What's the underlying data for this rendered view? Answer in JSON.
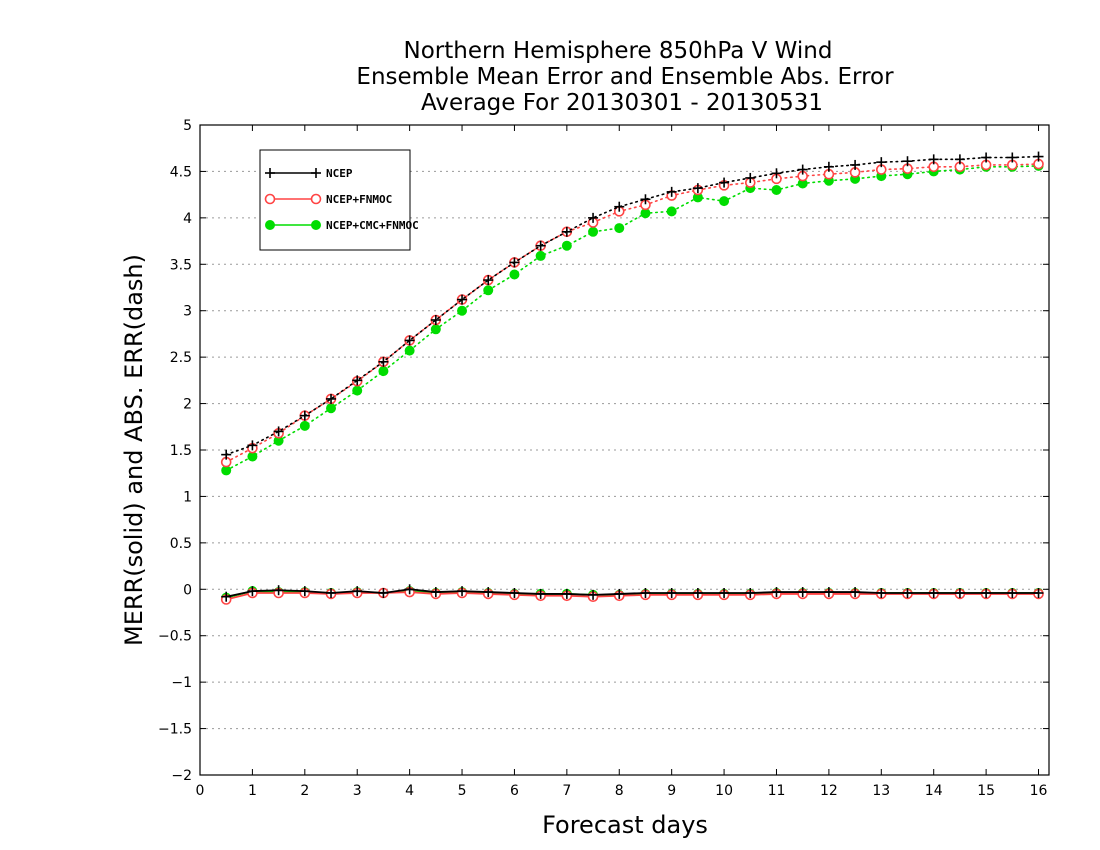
{
  "chart_data": {
    "type": "line",
    "title": [
      "Northern Hemisphere 850hPa V Wind",
      "Ensemble Mean Error and Ensemble Abs. Error",
      "Average For 20130301 - 20130531"
    ],
    "xlabel": "Forecast days",
    "ylabel": "MERR(solid) and ABS. ERR(dash)",
    "xlim": [
      0,
      16.2
    ],
    "ylim": [
      -2,
      5
    ],
    "xticks": [
      0,
      1,
      2,
      3,
      4,
      5,
      6,
      7,
      8,
      9,
      10,
      11,
      12,
      13,
      14,
      15,
      16
    ],
    "xtick_labels": [
      "0",
      "1",
      "2",
      "3",
      "4",
      "5",
      "6",
      "7",
      "8",
      "9",
      "10",
      "11",
      "12",
      "13",
      "14",
      "15",
      "16"
    ],
    "yticks": [
      -2,
      -1.5,
      -1,
      -0.5,
      0,
      0.5,
      1,
      1.5,
      2,
      2.5,
      3,
      3.5,
      4,
      4.5,
      5
    ],
    "ytick_labels": [
      "−2",
      "−1.5",
      "−1",
      "−0.5",
      "0",
      "0.5",
      "1",
      "1.5",
      "2",
      "2.5",
      "3",
      "3.5",
      "4",
      "4.5",
      "5"
    ],
    "grid": "horizontal-dotted",
    "legend_position": "top-left",
    "x": [
      0.5,
      1,
      1.5,
      2,
      2.5,
      3,
      3.5,
      4,
      4.5,
      5,
      5.5,
      6,
      6.5,
      7,
      7.5,
      8,
      8.5,
      9,
      9.5,
      10,
      10.5,
      11,
      11.5,
      12,
      12.5,
      13,
      13.5,
      14,
      14.5,
      15,
      15.5,
      16
    ],
    "series": [
      {
        "name": "NCEP",
        "color": "#000000",
        "marker": "plus",
        "abs_error": [
          1.45,
          1.55,
          1.7,
          1.87,
          2.05,
          2.25,
          2.45,
          2.68,
          2.9,
          3.12,
          3.33,
          3.52,
          3.7,
          3.85,
          4.0,
          4.12,
          4.2,
          4.28,
          4.32,
          4.38,
          4.43,
          4.48,
          4.52,
          4.55,
          4.57,
          4.6,
          4.61,
          4.63,
          4.63,
          4.65,
          4.65,
          4.66
        ],
        "mean_error": [
          -0.08,
          -0.02,
          -0.01,
          -0.02,
          -0.04,
          -0.02,
          -0.04,
          0.0,
          -0.03,
          -0.02,
          -0.03,
          -0.04,
          -0.05,
          -0.05,
          -0.06,
          -0.05,
          -0.04,
          -0.04,
          -0.04,
          -0.04,
          -0.04,
          -0.03,
          -0.03,
          -0.03,
          -0.03,
          -0.04,
          -0.04,
          -0.04,
          -0.04,
          -0.04,
          -0.04,
          -0.04
        ]
      },
      {
        "name": "NCEP+FNMOC",
        "color": "#ff4444",
        "marker": "open-circle",
        "abs_error": [
          1.37,
          1.52,
          1.68,
          1.87,
          2.05,
          2.24,
          2.45,
          2.68,
          2.9,
          3.12,
          3.33,
          3.52,
          3.7,
          3.85,
          3.95,
          4.07,
          4.14,
          4.24,
          4.3,
          4.35,
          4.38,
          4.42,
          4.45,
          4.47,
          4.49,
          4.52,
          4.53,
          4.55,
          4.55,
          4.57,
          4.57,
          4.58
        ],
        "mean_error": [
          -0.11,
          -0.04,
          -0.04,
          -0.04,
          -0.05,
          -0.04,
          -0.04,
          -0.03,
          -0.05,
          -0.04,
          -0.05,
          -0.06,
          -0.07,
          -0.07,
          -0.08,
          -0.07,
          -0.06,
          -0.06,
          -0.06,
          -0.06,
          -0.06,
          -0.05,
          -0.05,
          -0.05,
          -0.05,
          -0.05,
          -0.05,
          -0.05,
          -0.05,
          -0.05,
          -0.05,
          -0.05
        ]
      },
      {
        "name": "NCEP+CMC+FNMOC",
        "color": "#00dd00",
        "marker": "filled-circle",
        "abs_error": [
          1.28,
          1.43,
          1.6,
          1.76,
          1.95,
          2.14,
          2.35,
          2.57,
          2.8,
          3.0,
          3.22,
          3.39,
          3.59,
          3.7,
          3.85,
          3.89,
          4.05,
          4.07,
          4.22,
          4.18,
          4.32,
          4.3,
          4.37,
          4.4,
          4.42,
          4.45,
          4.47,
          4.5,
          4.52,
          4.55,
          4.55,
          4.56
        ],
        "mean_error": [
          -0.09,
          -0.02,
          -0.03,
          -0.03,
          -0.04,
          -0.03,
          -0.04,
          -0.02,
          -0.04,
          -0.03,
          -0.04,
          -0.05,
          -0.05,
          -0.05,
          -0.06,
          -0.06,
          -0.05,
          -0.05,
          -0.05,
          -0.05,
          -0.05,
          -0.04,
          -0.04,
          -0.04,
          -0.04,
          -0.04,
          -0.04,
          -0.04,
          -0.04,
          -0.04,
          -0.04,
          -0.04
        ]
      }
    ]
  }
}
